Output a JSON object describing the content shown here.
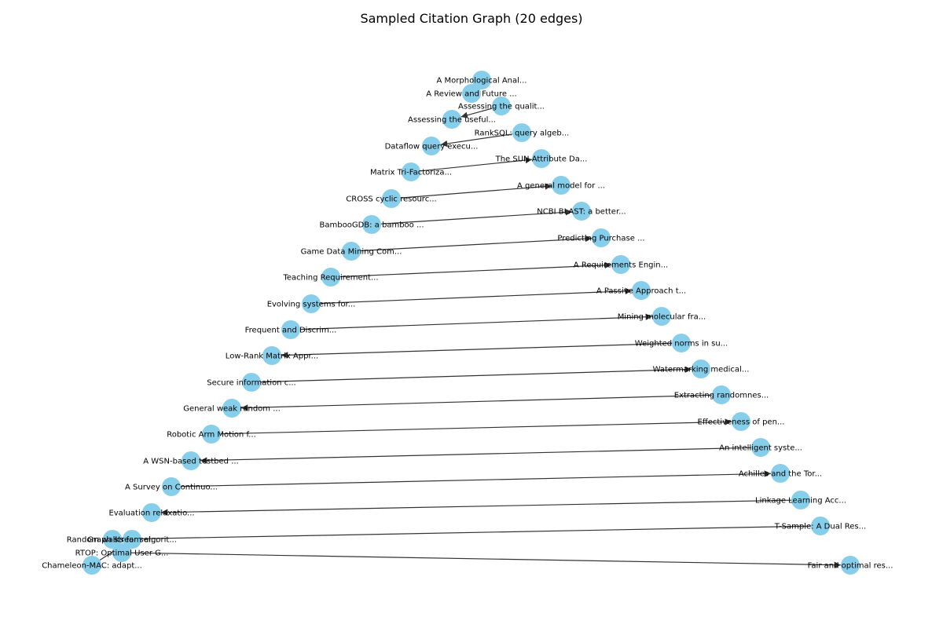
{
  "title": "Sampled Citation Graph (20 edges)",
  "colors": {
    "node": "#87ceeb",
    "edge": "#333333",
    "text": "#000000",
    "background": "#ffffff"
  },
  "nodes": [
    "A Morphological Anal...",
    "A Review and Future ...",
    "Assessing the qualit...",
    "Assessing the useful...",
    "RankSQL: query algeb...",
    "Dataflow query execu...",
    "The SUN Attribute Da...",
    "Matrix Tri-Factoriza...",
    "A general model for ...",
    "CROSS cyclic resourc...",
    "NCBI BLAST: a better...",
    "BambooGDB: a bamboo ...",
    "Predicting Purchase ...",
    "Game Data Mining Com...",
    "A Requirements Engin...",
    "Teaching Requirement...",
    "A Passive Approach t...",
    "Evolving systems for...",
    "Mining molecular fra...",
    "Frequent and Discrim...",
    "Weighted norms in su...",
    "Low-Rank Matrix Appr...",
    "Watermarking medical...",
    "Secure information c...",
    "Extracting randomnes...",
    "General weak random ...",
    "Effectiveness of pen...",
    "Robotic Arm Motion f...",
    "An intelligent syste...",
    "A WSN-based testbed ...",
    "Achilles and the Tor...",
    "A Survey on Continuo...",
    "Linkage Learning Acc...",
    "Evaluation relaxatio...",
    "T-Sample: A Dual Res...",
    "Random walks for sel...",
    "Graph stream algorit...",
    "RTOP: Optimal User G...",
    "Fair and optimal res...",
    "Chameleon-MAC: adapt..."
  ],
  "edges": [
    {
      "from": "Assessing the qualit...",
      "to": "Assessing the useful..."
    },
    {
      "from": "RankSQL: query algeb...",
      "to": "Dataflow query execu..."
    },
    {
      "from": "Matrix Tri-Factoriza...",
      "to": "The SUN Attribute Da..."
    },
    {
      "from": "CROSS cyclic resourc...",
      "to": "A general model for ..."
    },
    {
      "from": "BambooGDB: a bamboo ...",
      "to": "NCBI BLAST: a better..."
    },
    {
      "from": "Game Data Mining Com...",
      "to": "Predicting Purchase ..."
    },
    {
      "from": "Teaching Requirement...",
      "to": "A Requirements Engin..."
    },
    {
      "from": "Evolving systems for...",
      "to": "A Passive Approach t..."
    },
    {
      "from": "Frequent and Discrim...",
      "to": "Mining molecular fra..."
    },
    {
      "from": "Weighted norms in su...",
      "to": "Low-Rank Matrix Appr..."
    },
    {
      "from": "Secure information c...",
      "to": "Watermarking medical..."
    },
    {
      "from": "Extracting randomnes...",
      "to": "General weak random ..."
    },
    {
      "from": "Robotic Arm Motion f...",
      "to": "Effectiveness of pen..."
    },
    {
      "from": "An intelligent syste...",
      "to": "A WSN-based testbed ..."
    },
    {
      "from": "A Survey on Continuo...",
      "to": "Achilles and the Tor..."
    },
    {
      "from": "Linkage Learning Acc...",
      "to": "Evaluation relaxatio..."
    },
    {
      "from": "T-Sample: A Dual Res...",
      "to": "Random walks for sel..."
    },
    {
      "from": "RTOP: Optimal User G...",
      "to": "Fair and optimal res..."
    },
    {
      "from": "Chameleon-MAC: adapt...",
      "to": "Graph stream algorit..."
    },
    {
      "from": "A Morphological Anal...",
      "to": "A Review and Future ..."
    }
  ]
}
